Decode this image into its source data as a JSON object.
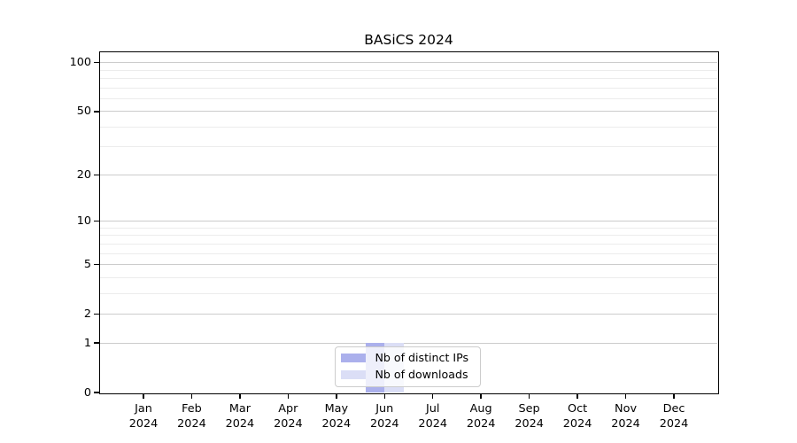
{
  "chart_data": {
    "type": "bar",
    "title": "BASiCS 2024",
    "categories": [
      "Jan 2024",
      "Feb 2024",
      "Mar 2024",
      "Apr 2024",
      "May 2024",
      "Jun 2024",
      "Jul 2024",
      "Aug 2024",
      "Sep 2024",
      "Oct 2024",
      "Nov 2024",
      "Dec 2024"
    ],
    "x_tick_labels": [
      [
        "Jan",
        "2024"
      ],
      [
        "Feb",
        "2024"
      ],
      [
        "Mar",
        "2024"
      ],
      [
        "Apr",
        "2024"
      ],
      [
        "May",
        "2024"
      ],
      [
        "Jun",
        "2024"
      ],
      [
        "Jul",
        "2024"
      ],
      [
        "Aug",
        "2024"
      ],
      [
        "Sep",
        "2024"
      ],
      [
        "Oct",
        "2024"
      ],
      [
        "Nov",
        "2024"
      ],
      [
        "Dec",
        "2024"
      ]
    ],
    "series": [
      {
        "name": "Nb of distinct IPs",
        "color": "#abb0ec",
        "values": [
          0,
          0,
          0,
          0,
          0,
          1,
          0,
          0,
          0,
          0,
          0,
          0
        ]
      },
      {
        "name": "Nb of downloads",
        "color": "#dbdef6",
        "values": [
          0,
          0,
          0,
          0,
          0,
          1,
          0,
          0,
          0,
          0,
          0,
          0
        ]
      }
    ],
    "y_scale": "log1p",
    "y_major_ticks": [
      0,
      1,
      2,
      5,
      10,
      20,
      50,
      100
    ],
    "y_minor_gridlines": [
      3,
      4,
      6,
      7,
      8,
      9,
      30,
      40,
      60,
      70,
      80,
      90
    ],
    "ylim": [
      0,
      115
    ],
    "grid": true,
    "legend_position": "lower-center-inside",
    "colors": {
      "background": "#ffffff",
      "axis": "#000000",
      "major_grid": "#cccccc",
      "minor_grid": "#ececec",
      "legend_border": "#cccccc",
      "text": "#000000"
    }
  }
}
